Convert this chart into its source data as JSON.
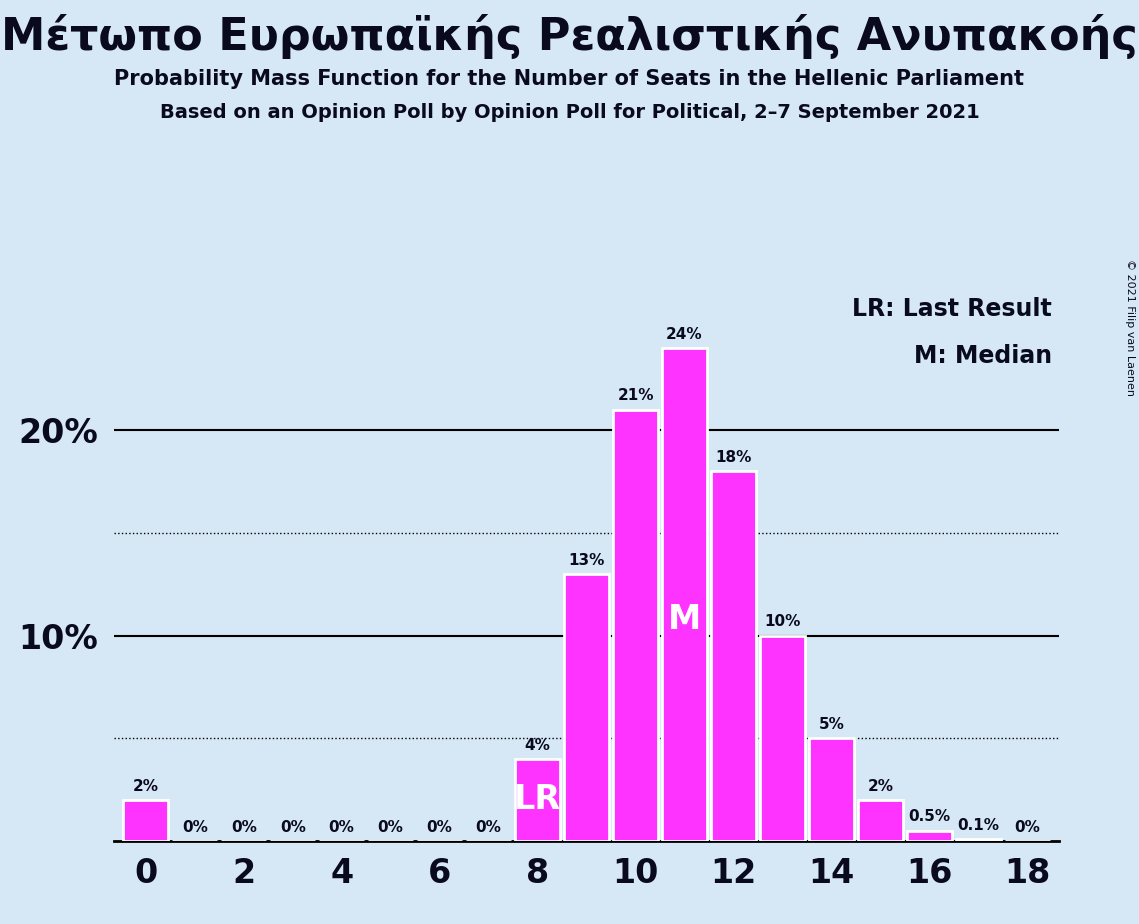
{
  "title_greek": "Μέτωπο Ευρωπαϊκής Ρεαλιστικής Ανυπακοής",
  "subtitle1": "Probability Mass Function for the Number of Seats in the Hellenic Parliament",
  "subtitle2": "Based on an Opinion Poll by Opinion Poll for Political, 2–7 September 2021",
  "copyright": "© 2021 Filip van Laenen",
  "seats": [
    0,
    1,
    2,
    3,
    4,
    5,
    6,
    7,
    8,
    9,
    10,
    11,
    12,
    13,
    14,
    15,
    16,
    17,
    18
  ],
  "probabilities": [
    2,
    0,
    0,
    0,
    0,
    0,
    0,
    0,
    4,
    13,
    21,
    24,
    18,
    10,
    5,
    2,
    0.5,
    0.1,
    0
  ],
  "bar_color": "#FF33FF",
  "bar_edge_color": "white",
  "background_color": "#D6E8F5",
  "text_color": "#0a0a1e",
  "lr_seat": 8,
  "median_seat": 11,
  "ylim": [
    0,
    27
  ],
  "solid_gridlines": [
    10,
    20
  ],
  "dotted_gridlines": [
    5,
    15
  ],
  "legend_lr": "LR: Last Result",
  "legend_m": "M: Median"
}
